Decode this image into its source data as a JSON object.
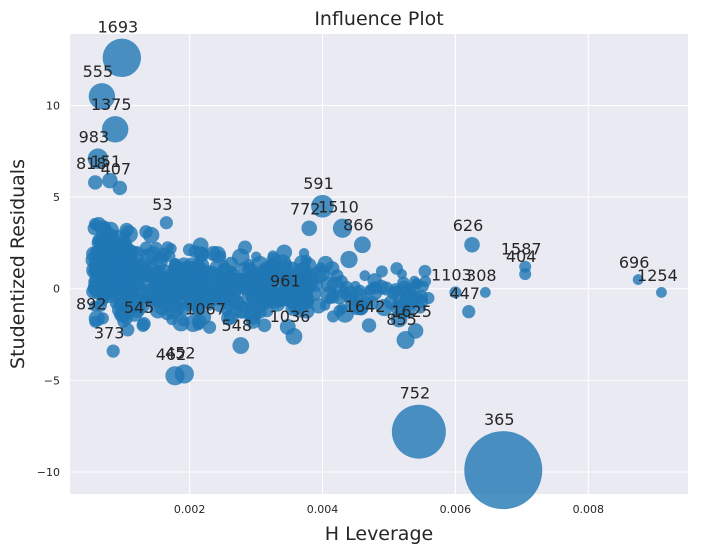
{
  "chart_data": {
    "type": "scatter",
    "title": "Influence Plot",
    "xlabel": "H Leverage",
    "ylabel": "Studentized Residuals",
    "xlim": [
      0.0002,
      0.0095
    ],
    "ylim": [
      -11.2,
      13.9
    ],
    "xticks": [
      0.002,
      0.004,
      0.006,
      0.008
    ],
    "yticks": [
      -10,
      -5,
      0,
      5,
      10
    ],
    "grid": true,
    "color": "#1f77b4",
    "bubble_size_encodes": "influence",
    "labeled_points": [
      {
        "label": "1693",
        "x": 0.00098,
        "y": 12.6,
        "size": 3.2
      },
      {
        "label": "555",
        "x": 0.00068,
        "y": 10.5,
        "size": 2.2
      },
      {
        "label": "1375",
        "x": 0.00088,
        "y": 8.7,
        "size": 2.2
      },
      {
        "label": "983",
        "x": 0.00062,
        "y": 7.1,
        "size": 1.7
      },
      {
        "label": "151",
        "x": 0.0008,
        "y": 5.9,
        "size": 1.3
      },
      {
        "label": "818",
        "x": 0.00058,
        "y": 5.8,
        "size": 1.2
      },
      {
        "label": "407",
        "x": 0.00095,
        "y": 5.5,
        "size": 1.2
      },
      {
        "label": "591",
        "x": 0.004,
        "y": 4.5,
        "size": 1.9
      },
      {
        "label": "1510",
        "x": 0.0043,
        "y": 3.3,
        "size": 1.6
      },
      {
        "label": "866",
        "x": 0.0046,
        "y": 2.4,
        "size": 1.4
      },
      {
        "label": "626",
        "x": 0.00625,
        "y": 2.4,
        "size": 1.3
      },
      {
        "label": "1587",
        "x": 0.00705,
        "y": 1.2,
        "size": 1.0
      },
      {
        "label": "404",
        "x": 0.00705,
        "y": 0.8,
        "size": 1.0
      },
      {
        "label": "1103",
        "x": 0.006,
        "y": -0.2,
        "size": 1.0
      },
      {
        "label": "308",
        "x": 0.00645,
        "y": -0.2,
        "size": 0.9
      },
      {
        "label": "447",
        "x": 0.0062,
        "y": -1.25,
        "size": 1.1
      },
      {
        "label": "696",
        "x": 0.00875,
        "y": 0.5,
        "size": 0.9
      },
      {
        "label": "1254",
        "x": 0.0091,
        "y": -0.2,
        "size": 0.9
      },
      {
        "label": "548",
        "x": 0.00277,
        "y": -3.1,
        "size": 1.4
      },
      {
        "label": "1036",
        "x": 0.00357,
        "y": -2.6,
        "size": 1.4
      },
      {
        "label": "892",
        "x": 0.00058,
        "y": -1.8,
        "size": 1.0
      },
      {
        "label": "373",
        "x": 0.00085,
        "y": -3.4,
        "size": 1.1
      },
      {
        "label": "545",
        "x": 0.0013,
        "y": -2.0,
        "size": 1.1
      },
      {
        "label": "1067",
        "x": 0.0023,
        "y": -2.1,
        "size": 1.1
      },
      {
        "label": "855",
        "x": 0.00525,
        "y": -2.8,
        "size": 1.5
      },
      {
        "label": "1625",
        "x": 0.0054,
        "y": -2.3,
        "size": 1.3
      },
      {
        "label": "1642",
        "x": 0.0047,
        "y": -2.0,
        "size": 1.2
      },
      {
        "label": "462",
        "x": 0.00178,
        "y": -4.75,
        "size": 1.6
      },
      {
        "label": "452",
        "x": 0.00192,
        "y": -4.65,
        "size": 1.6
      },
      {
        "label": "752",
        "x": 0.00545,
        "y": -7.8,
        "size": 4.5
      },
      {
        "label": "365",
        "x": 0.00672,
        "y": -9.9,
        "size": 6.5
      },
      {
        "label": "961",
        "x": 0.0035,
        "y": -0.6,
        "size": 1.2
      },
      {
        "label": "772",
        "x": 0.0038,
        "y": 3.3,
        "size": 1.3
      },
      {
        "label": "53",
        "x": 0.00165,
        "y": 3.6,
        "size": 1.1
      }
    ],
    "unlabeled_cluster": [
      {
        "x_range": [
          0.00055,
          0.0011
        ],
        "y_range": [
          -2.5,
          4.5
        ],
        "count": 170
      },
      {
        "x_range": [
          0.001,
          0.0022
        ],
        "y_range": [
          -2.8,
          3.5
        ],
        "count": 170
      },
      {
        "x_range": [
          0.002,
          0.0038
        ],
        "y_range": [
          -2.5,
          2.6
        ],
        "count": 220
      },
      {
        "x_range": [
          0.0036,
          0.0056
        ],
        "y_range": [
          -2.3,
          2.3
        ],
        "count": 80
      }
    ]
  }
}
